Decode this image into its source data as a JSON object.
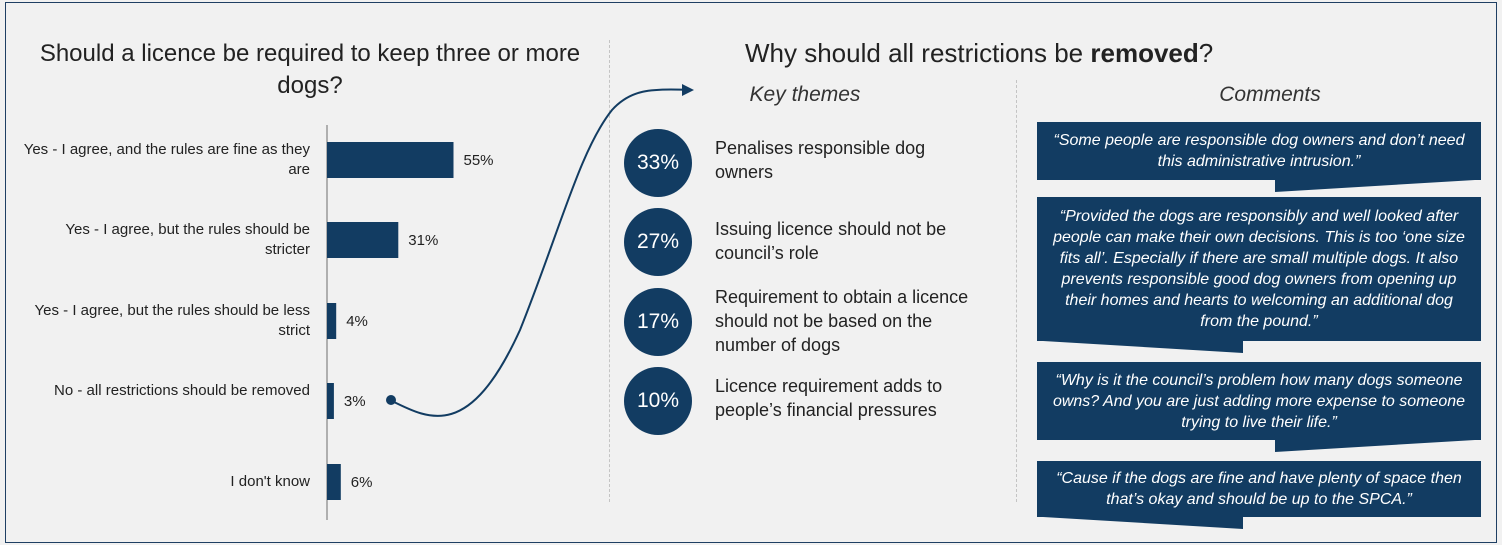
{
  "colors": {
    "navy": "#123c62",
    "background": "#f1f1f1",
    "axis": "#999999"
  },
  "left": {
    "title": "Should a licence be required to keep three or more dogs?"
  },
  "chart_data": {
    "type": "bar",
    "orientation": "horizontal",
    "title": "Should a licence be required to keep three or more dogs?",
    "categories": [
      "Yes - I agree, and the rules are fine as they are",
      "Yes - I agree, but the rules should be stricter",
      "Yes - I agree, but the rules should be less strict",
      "No - all restrictions should be removed",
      "I don't know"
    ],
    "values": [
      55,
      31,
      4,
      3,
      6
    ],
    "data_labels": [
      "55%",
      "31%",
      "4%",
      "3%",
      "6%"
    ],
    "xlim": [
      0,
      100
    ],
    "grid": false,
    "color": "#123c62"
  },
  "right": {
    "title_prefix": "Why should all restrictions be ",
    "title_bold": "removed",
    "title_suffix": "?",
    "themes_heading": "Key themes",
    "comments_heading": "Comments",
    "themes": [
      {
        "percent": "33%",
        "text": "Penalises responsible dog owners"
      },
      {
        "percent": "27%",
        "text": "Issuing licence should not be council’s role"
      },
      {
        "percent": "17%",
        "text": "Requirement to obtain a licence should not be based on the number of dogs"
      },
      {
        "percent": "10%",
        "text": "Licence requirement adds to people’s financial pressures"
      }
    ],
    "comments": [
      "“Some people are responsible dog owners and don’t need this administrative intrusion.”",
      "“Provided the dogs are responsibly and well looked after people can make their own decisions. This is too ‘one size fits all’. Especially if there are small multiple dogs. It also prevents responsible good dog owners from opening up their homes and hearts to welcoming an additional dog from the pound.”",
      "“Why is it the council’s problem how many dogs someone owns? And you are just adding more expense to someone trying to live their life.”",
      "“Cause if the dogs are fine and have plenty of space then that’s okay and should be up to the SPCA.”"
    ]
  }
}
